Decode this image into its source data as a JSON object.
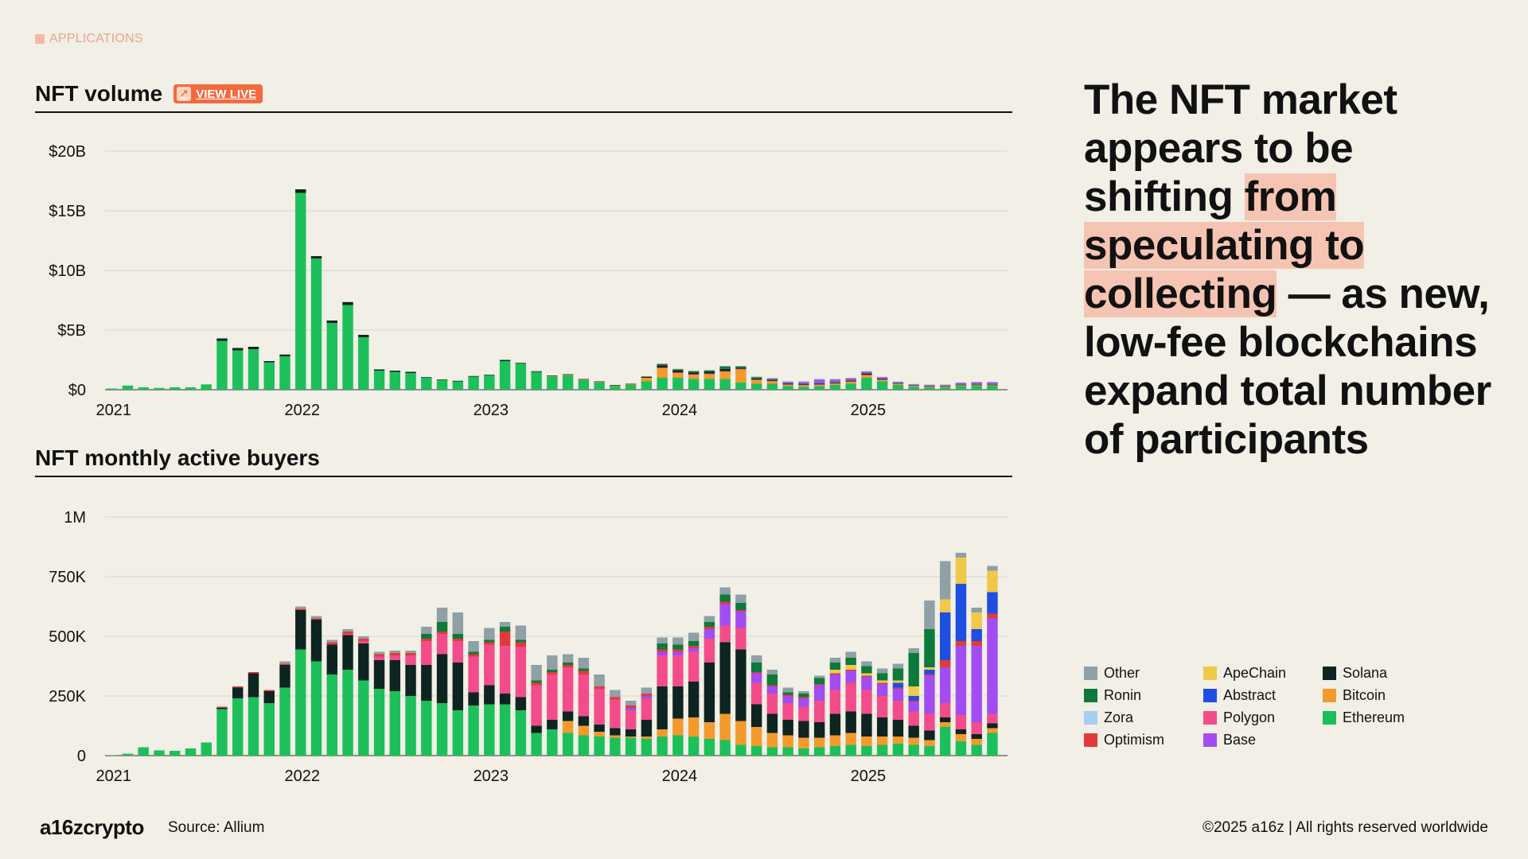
{
  "section_label": "APPLICATIONS",
  "volume_chart": {
    "title": "NFT volume",
    "live_label": "VIEW LIVE",
    "y_ticks": [
      "$0",
      "$5B",
      "$10B",
      "$15B",
      "$20B"
    ],
    "x_ticks": [
      "2021",
      "2022",
      "2023",
      "2024",
      "2025"
    ]
  },
  "buyers_chart": {
    "title": "NFT monthly active buyers",
    "y_ticks": [
      "0",
      "250K",
      "500K",
      "750K",
      "1M"
    ],
    "x_ticks": [
      "2021",
      "2022",
      "2023",
      "2024",
      "2025"
    ]
  },
  "headline": {
    "part1": "The NFT market appears to be shifting ",
    "highlight": "from speculating to collecting",
    "part2": " — as new, low-fee blockchains expand total number of participants"
  },
  "legend": [
    {
      "name": "Other",
      "color": "#8fa0a6"
    },
    {
      "name": "ApeChain",
      "color": "#f0c94a"
    },
    {
      "name": "Solana",
      "color": "#0e2420"
    },
    {
      "name": "Ronin",
      "color": "#0c7a3a"
    },
    {
      "name": "Abstract",
      "color": "#1f4fe0"
    },
    {
      "name": "Bitcoin",
      "color": "#f39a2c"
    },
    {
      "name": "Zora",
      "color": "#a8cdf2"
    },
    {
      "name": "Polygon",
      "color": "#f24d8a"
    },
    {
      "name": "Ethereum",
      "color": "#1dbf5a"
    },
    {
      "name": "Optimism",
      "color": "#e23a3a"
    },
    {
      "name": "Base",
      "color": "#a14df2"
    }
  ],
  "footer": {
    "logo": "a16zcrypto",
    "source": "Source: Allium",
    "copyright": "©2025 a16z | All rights reserved worldwide"
  },
  "chart_data": [
    {
      "type": "bar",
      "stacked": true,
      "title": "NFT volume",
      "unit": "USD billions",
      "ylim": [
        0,
        20
      ],
      "start_month": "2021-01",
      "months": 57,
      "series": [
        {
          "name": "Ethereum",
          "values": [
            0.1,
            0.35,
            0.2,
            0.15,
            0.2,
            0.2,
            0.45,
            4.1,
            3.3,
            3.4,
            2.3,
            2.8,
            16.5,
            11.0,
            5.6,
            7.1,
            4.4,
            1.6,
            1.5,
            1.4,
            1.0,
            0.8,
            0.7,
            1.1,
            1.2,
            2.4,
            2.2,
            1.5,
            1.1,
            1.2,
            0.8,
            0.6,
            0.3,
            0.4,
            0.7,
            1.0,
            1.0,
            0.9,
            0.9,
            0.9,
            0.6,
            0.5,
            0.5,
            0.3,
            0.25,
            0.3,
            0.4,
            0.5,
            1.0,
            0.7,
            0.4,
            0.25,
            0.2,
            0.2,
            0.3,
            0.3,
            0.3
          ]
        },
        {
          "name": "Bitcoin",
          "values": [
            0,
            0,
            0,
            0,
            0,
            0,
            0,
            0,
            0,
            0,
            0,
            0,
            0,
            0,
            0,
            0,
            0,
            0,
            0,
            0,
            0,
            0,
            0,
            0,
            0,
            0,
            0,
            0,
            0.05,
            0.05,
            0.05,
            0.05,
            0.05,
            0.05,
            0.3,
            0.8,
            0.4,
            0.35,
            0.4,
            0.6,
            1.1,
            0.3,
            0.2,
            0.1,
            0.1,
            0.1,
            0.1,
            0.15,
            0.2,
            0.1,
            0.08,
            0.05,
            0.05,
            0.05,
            0.05,
            0.05,
            0.05
          ]
        },
        {
          "name": "Polygon",
          "values": [
            0,
            0,
            0,
            0,
            0,
            0,
            0,
            0,
            0,
            0,
            0,
            0,
            0,
            0,
            0,
            0,
            0,
            0,
            0,
            0,
            0,
            0,
            0,
            0,
            0,
            0,
            0,
            0,
            0,
            0,
            0,
            0,
            0,
            0,
            0,
            0.05,
            0.05,
            0.05,
            0.05,
            0.05,
            0.05,
            0.05,
            0.05,
            0.05,
            0.05,
            0.05,
            0.05,
            0.05,
            0.05,
            0.05,
            0.03,
            0.03,
            0.03,
            0.03,
            0.03,
            0.03,
            0.03
          ]
        },
        {
          "name": "Solana",
          "values": [
            0,
            0,
            0,
            0,
            0,
            0,
            0,
            0.2,
            0.2,
            0.2,
            0.1,
            0.15,
            0.3,
            0.2,
            0.2,
            0.25,
            0.2,
            0.1,
            0.1,
            0.1,
            0.05,
            0.05,
            0.05,
            0.05,
            0.05,
            0.1,
            0.05,
            0.05,
            0.05,
            0.05,
            0.05,
            0.05,
            0.05,
            0.05,
            0.1,
            0.2,
            0.15,
            0.15,
            0.15,
            0.2,
            0.1,
            0.1,
            0.08,
            0.05,
            0.05,
            0.05,
            0.05,
            0.05,
            0.1,
            0.05,
            0.05,
            0.03,
            0.03,
            0.03,
            0.03,
            0.03,
            0.03
          ]
        },
        {
          "name": "Ronin",
          "values": [
            0,
            0,
            0,
            0,
            0,
            0,
            0,
            0,
            0,
            0,
            0,
            0,
            0,
            0,
            0,
            0,
            0,
            0,
            0,
            0,
            0,
            0,
            0,
            0,
            0,
            0,
            0,
            0,
            0,
            0,
            0,
            0,
            0,
            0,
            0,
            0.1,
            0.1,
            0.1,
            0.1,
            0.2,
            0.1,
            0.1,
            0.05,
            0.05,
            0.05,
            0.05,
            0.05,
            0.05,
            0.05,
            0.03,
            0.02,
            0.02,
            0.02,
            0.02,
            0.05,
            0.05,
            0.05
          ]
        },
        {
          "name": "Base",
          "values": [
            0,
            0,
            0,
            0,
            0,
            0,
            0,
            0,
            0,
            0,
            0,
            0,
            0,
            0,
            0,
            0,
            0,
            0,
            0,
            0,
            0,
            0,
            0,
            0,
            0,
            0,
            0,
            0,
            0,
            0,
            0,
            0,
            0,
            0,
            0,
            0,
            0,
            0,
            0,
            0,
            0,
            0,
            0.05,
            0.1,
            0.15,
            0.3,
            0.2,
            0.15,
            0.1,
            0.1,
            0.05,
            0.05,
            0.05,
            0.05,
            0.1,
            0.15,
            0.15
          ]
        },
        {
          "name": "Other",
          "values": [
            0,
            0,
            0,
            0,
            0,
            0,
            0,
            0,
            0,
            0,
            0,
            0,
            0,
            0,
            0,
            0,
            0,
            0,
            0,
            0,
            0,
            0,
            0,
            0,
            0,
            0,
            0,
            0,
            0,
            0,
            0,
            0,
            0,
            0,
            0,
            0.05,
            0.05,
            0.05,
            0.05,
            0.05,
            0.05,
            0.05,
            0.05,
            0.05,
            0.05,
            0.05,
            0.05,
            0.05,
            0.05,
            0.05,
            0.05,
            0.05,
            0.05,
            0.05,
            0.05,
            0.05,
            0.05
          ]
        }
      ]
    },
    {
      "type": "bar",
      "stacked": true,
      "title": "NFT monthly active buyers",
      "unit": "buyers (thousands)",
      "ylim": [
        0,
        1000
      ],
      "start_month": "2021-01",
      "months": 57,
      "series": [
        {
          "name": "Ethereum",
          "values": [
            2,
            8,
            35,
            22,
            20,
            30,
            55,
            195,
            240,
            245,
            220,
            285,
            445,
            395,
            340,
            360,
            315,
            280,
            270,
            250,
            230,
            220,
            190,
            210,
            215,
            215,
            190,
            95,
            110,
            95,
            85,
            80,
            75,
            75,
            70,
            80,
            85,
            80,
            70,
            65,
            45,
            40,
            35,
            35,
            30,
            35,
            40,
            45,
            40,
            45,
            50,
            45,
            40,
            120,
            60,
            45,
            95
          ]
        },
        {
          "name": "Bitcoin",
          "values": [
            0,
            0,
            0,
            0,
            0,
            0,
            0,
            0,
            0,
            0,
            0,
            0,
            0,
            0,
            0,
            0,
            0,
            0,
            0,
            0,
            0,
            0,
            0,
            0,
            0,
            0,
            0,
            0,
            0,
            50,
            40,
            20,
            10,
            5,
            10,
            30,
            70,
            80,
            70,
            110,
            100,
            80,
            60,
            50,
            45,
            40,
            45,
            50,
            40,
            35,
            30,
            30,
            25,
            20,
            30,
            25,
            20
          ]
        },
        {
          "name": "Solana",
          "values": [
            0,
            0,
            0,
            0,
            0,
            0,
            0,
            5,
            45,
            100,
            50,
            95,
            165,
            175,
            125,
            145,
            155,
            120,
            130,
            130,
            150,
            205,
            200,
            55,
            80,
            45,
            55,
            30,
            40,
            40,
            40,
            30,
            30,
            30,
            70,
            180,
            135,
            150,
            250,
            300,
            300,
            95,
            80,
            65,
            70,
            65,
            90,
            90,
            95,
            80,
            70,
            50,
            40,
            20,
            20,
            20,
            20
          ]
        },
        {
          "name": "Polygon",
          "values": [
            0,
            0,
            0,
            0,
            0,
            0,
            0,
            0,
            0,
            0,
            0,
            0,
            0,
            0,
            0,
            5,
            10,
            15,
            20,
            40,
            100,
            85,
            90,
            150,
            170,
            200,
            210,
            170,
            190,
            185,
            175,
            150,
            120,
            80,
            90,
            130,
            130,
            125,
            100,
            70,
            90,
            90,
            85,
            70,
            60,
            90,
            100,
            120,
            100,
            90,
            80,
            60,
            70,
            60,
            60,
            50,
            40
          ]
        },
        {
          "name": "Base",
          "values": [
            0,
            0,
            0,
            0,
            0,
            0,
            0,
            0,
            0,
            0,
            0,
            0,
            0,
            0,
            0,
            0,
            0,
            0,
            0,
            0,
            0,
            0,
            0,
            0,
            0,
            0,
            0,
            0,
            0,
            0,
            0,
            0,
            0,
            10,
            10,
            15,
            15,
            15,
            40,
            90,
            70,
            40,
            30,
            30,
            35,
            65,
            65,
            50,
            55,
            50,
            50,
            40,
            160,
            150,
            290,
            320,
            400
          ]
        },
        {
          "name": "Optimism",
          "values": [
            0,
            0,
            0,
            0,
            0,
            0,
            0,
            5,
            5,
            5,
            5,
            5,
            5,
            5,
            10,
            10,
            10,
            10,
            10,
            10,
            10,
            10,
            10,
            10,
            10,
            60,
            20,
            10,
            10,
            10,
            15,
            10,
            10,
            10,
            10,
            10,
            10,
            10,
            10,
            10,
            5,
            5,
            5,
            5,
            5,
            5,
            5,
            5,
            5,
            5,
            5,
            5,
            5,
            30,
            20,
            20,
            20
          ]
        },
        {
          "name": "Abstract",
          "values": [
            0,
            0,
            0,
            0,
            0,
            0,
            0,
            0,
            0,
            0,
            0,
            0,
            0,
            0,
            0,
            0,
            0,
            0,
            0,
            0,
            0,
            0,
            0,
            0,
            0,
            0,
            0,
            0,
            0,
            0,
            0,
            0,
            0,
            0,
            0,
            0,
            0,
            0,
            0,
            0,
            0,
            0,
            0,
            0,
            0,
            0,
            0,
            0,
            0,
            0,
            20,
            20,
            20,
            200,
            240,
            50,
            90
          ]
        },
        {
          "name": "ApeChain",
          "values": [
            0,
            0,
            0,
            0,
            0,
            0,
            0,
            0,
            0,
            0,
            0,
            0,
            0,
            0,
            0,
            0,
            0,
            0,
            0,
            0,
            0,
            0,
            0,
            0,
            0,
            0,
            0,
            0,
            0,
            0,
            0,
            0,
            0,
            0,
            0,
            0,
            0,
            0,
            0,
            0,
            0,
            0,
            0,
            0,
            0,
            0,
            15,
            20,
            10,
            10,
            10,
            40,
            10,
            55,
            110,
            70,
            90
          ]
        },
        {
          "name": "Ronin",
          "values": [
            0,
            0,
            0,
            0,
            0,
            0,
            0,
            0,
            0,
            0,
            0,
            0,
            0,
            0,
            0,
            0,
            0,
            0,
            0,
            0,
            20,
            40,
            20,
            10,
            10,
            20,
            10,
            10,
            10,
            10,
            10,
            0,
            0,
            0,
            0,
            25,
            20,
            20,
            20,
            30,
            30,
            40,
            45,
            10,
            15,
            25,
            30,
            30,
            30,
            30,
            50,
            140,
            160,
            0,
            0,
            0,
            0
          ]
        },
        {
          "name": "Other",
          "values": [
            0,
            0,
            0,
            0,
            0,
            0,
            0,
            0,
            0,
            0,
            0,
            10,
            10,
            10,
            10,
            10,
            10,
            10,
            10,
            10,
            30,
            60,
            90,
            45,
            50,
            20,
            60,
            65,
            60,
            35,
            45,
            50,
            30,
            20,
            25,
            25,
            30,
            35,
            25,
            30,
            35,
            30,
            20,
            20,
            10,
            10,
            20,
            25,
            20,
            20,
            20,
            20,
            120,
            160,
            20,
            20,
            20
          ]
        }
      ]
    }
  ]
}
